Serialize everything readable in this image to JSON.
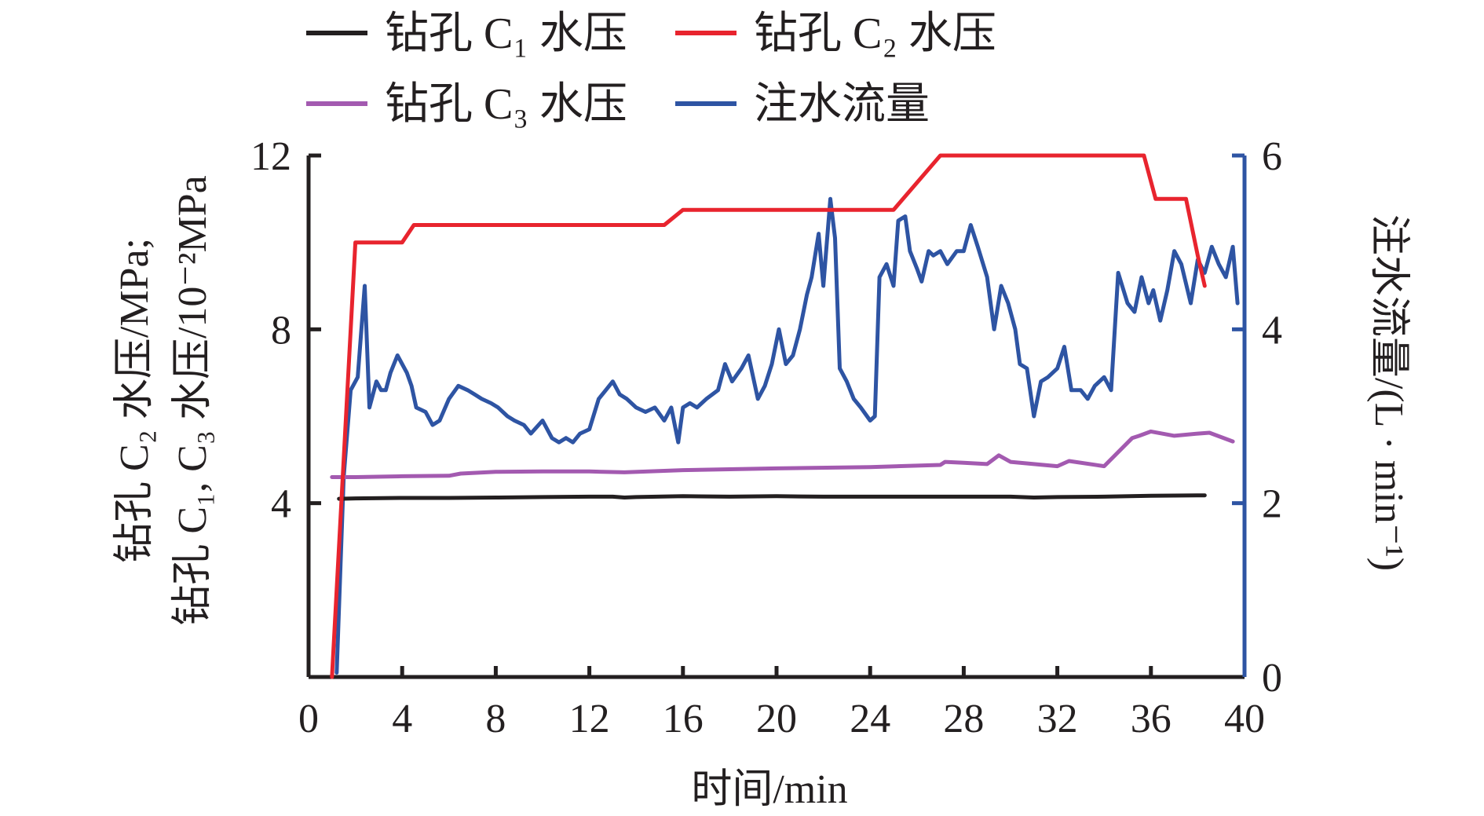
{
  "chart_data": {
    "type": "line",
    "xlabel": "时间/min",
    "ylabel_left_line1": "钻孔 C₂ 水压/MPa;",
    "ylabel_left_line2": "钻孔 C₁, C₃ 水压/10⁻²MPa",
    "ylabel_right": "注水流量/(L · min⁻¹)",
    "xlim": [
      0,
      40
    ],
    "ylim_left": [
      0,
      12
    ],
    "ylim_right": [
      0,
      6
    ],
    "x_ticks": [
      "0",
      "4",
      "8",
      "12",
      "16",
      "20",
      "24",
      "28",
      "32",
      "36",
      "40"
    ],
    "y_left_ticks": [
      "4",
      "8",
      "12"
    ],
    "y_right_ticks": [
      "0",
      "2",
      "4",
      "6"
    ],
    "legend_position": "top",
    "colors": {
      "c1": "#231f20",
      "c2": "#e8242e",
      "c3": "#a35ab0",
      "flow": "#2e54a3",
      "left_axis": "#231f20",
      "right_axis": "#2e54a3"
    },
    "series": [
      {
        "name": "钻孔 C₁ 水压",
        "axis": "left",
        "color": "#231f20",
        "x": [
          1.3,
          2,
          4,
          6,
          8,
          10,
          12,
          13,
          13.5,
          14,
          16,
          18,
          20,
          22,
          24,
          26,
          28,
          30,
          31,
          32,
          34,
          36,
          38.3
        ],
        "y": [
          4.1,
          4.11,
          4.12,
          4.12,
          4.13,
          4.14,
          4.15,
          4.15,
          4.13,
          4.14,
          4.16,
          4.15,
          4.16,
          4.15,
          4.15,
          4.15,
          4.15,
          4.15,
          4.13,
          4.14,
          4.15,
          4.17,
          4.18
        ]
      },
      {
        "name": "钻孔 C₂ 水压",
        "axis": "left",
        "color": "#e8242e",
        "x": [
          1.0,
          2.0,
          4.0,
          4.5,
          15.2,
          16.0,
          25.0,
          27.0,
          35.7,
          36.2,
          37.5,
          38.0,
          38.3
        ],
        "y": [
          0,
          10.0,
          10.0,
          10.4,
          10.4,
          10.75,
          10.75,
          12.0,
          12.0,
          11.0,
          11.0,
          9.7,
          9.0
        ]
      },
      {
        "name": "钻孔 C₃ 水压",
        "axis": "left",
        "color": "#a35ab0",
        "x": [
          1.0,
          2,
          4,
          6,
          6.5,
          8,
          10,
          12,
          13.5,
          16,
          20,
          24,
          27,
          27.2,
          28,
          29,
          29.5,
          30,
          32,
          32.5,
          34,
          35.2,
          35.5,
          36,
          37,
          38,
          38.5,
          39.5
        ],
        "y": [
          4.6,
          4.6,
          4.62,
          4.63,
          4.68,
          4.72,
          4.73,
          4.73,
          4.71,
          4.76,
          4.8,
          4.83,
          4.88,
          4.95,
          4.93,
          4.9,
          5.1,
          4.95,
          4.85,
          4.97,
          4.85,
          5.5,
          5.55,
          5.65,
          5.55,
          5.6,
          5.62,
          5.42
        ]
      },
      {
        "name": "注水流量",
        "axis": "right",
        "color": "#2e54a3",
        "x": [
          1.2,
          1.5,
          1.8,
          2.1,
          2.4,
          2.6,
          2.9,
          3.1,
          3.3,
          3.5,
          3.8,
          4.2,
          4.4,
          4.6,
          5.0,
          5.3,
          5.6,
          6.0,
          6.4,
          6.8,
          7.1,
          7.4,
          7.8,
          8.1,
          8.5,
          8.8,
          9.2,
          9.5,
          10.0,
          10.4,
          10.7,
          11.0,
          11.3,
          11.6,
          12.0,
          12.4,
          12.7,
          13.0,
          13.3,
          13.6,
          14.0,
          14.4,
          14.8,
          15.2,
          15.5,
          15.8,
          16.0,
          16.3,
          16.6,
          17.0,
          17.5,
          17.8,
          18.1,
          18.5,
          18.8,
          19.2,
          19.5,
          19.8,
          20.1,
          20.4,
          20.7,
          21.0,
          21.3,
          21.5,
          21.8,
          22.0,
          22.3,
          22.5,
          22.7,
          23.0,
          23.3,
          23.6,
          24.0,
          24.2,
          24.4,
          24.7,
          25.0,
          25.2,
          25.5,
          25.7,
          26.0,
          26.2,
          26.5,
          26.7,
          27.0,
          27.3,
          27.7,
          28.0,
          28.3,
          28.6,
          29.0,
          29.3,
          29.6,
          29.9,
          30.2,
          30.4,
          30.7,
          31.0,
          31.3,
          31.6,
          32.0,
          32.3,
          32.6,
          33.0,
          33.3,
          33.6,
          34.0,
          34.3,
          34.6,
          35.0,
          35.3,
          35.6,
          35.9,
          36.1,
          36.4,
          36.7,
          37.0,
          37.3,
          37.7,
          38.0,
          38.3,
          38.6,
          38.9,
          39.2,
          39.5,
          39.7
        ],
        "y": [
          0.05,
          2.3,
          3.3,
          3.45,
          4.5,
          3.1,
          3.4,
          3.3,
          3.3,
          3.5,
          3.7,
          3.5,
          3.35,
          3.1,
          3.05,
          2.9,
          2.95,
          3.2,
          3.35,
          3.3,
          3.25,
          3.2,
          3.15,
          3.1,
          3.0,
          2.95,
          2.9,
          2.8,
          2.95,
          2.75,
          2.7,
          2.75,
          2.7,
          2.8,
          2.85,
          3.2,
          3.3,
          3.4,
          3.25,
          3.2,
          3.1,
          3.05,
          3.1,
          2.95,
          3.1,
          2.7,
          3.1,
          3.15,
          3.1,
          3.2,
          3.3,
          3.6,
          3.4,
          3.55,
          3.7,
          3.2,
          3.35,
          3.6,
          4.0,
          3.6,
          3.7,
          4.0,
          4.4,
          4.6,
          5.1,
          4.5,
          5.5,
          5.05,
          3.55,
          3.4,
          3.2,
          3.1,
          2.95,
          3.0,
          4.6,
          4.75,
          4.5,
          5.25,
          5.3,
          4.9,
          4.7,
          4.55,
          4.9,
          4.85,
          4.9,
          4.75,
          4.9,
          4.9,
          5.2,
          4.95,
          4.6,
          4.0,
          4.5,
          4.3,
          4.0,
          3.6,
          3.55,
          3.0,
          3.4,
          3.45,
          3.55,
          3.8,
          3.3,
          3.3,
          3.2,
          3.35,
          3.45,
          3.3,
          4.65,
          4.3,
          4.2,
          4.6,
          4.3,
          4.45,
          4.1,
          4.45,
          4.9,
          4.75,
          4.3,
          4.8,
          4.65,
          4.95,
          4.75,
          4.6,
          4.95,
          4.3
        ]
      }
    ]
  }
}
